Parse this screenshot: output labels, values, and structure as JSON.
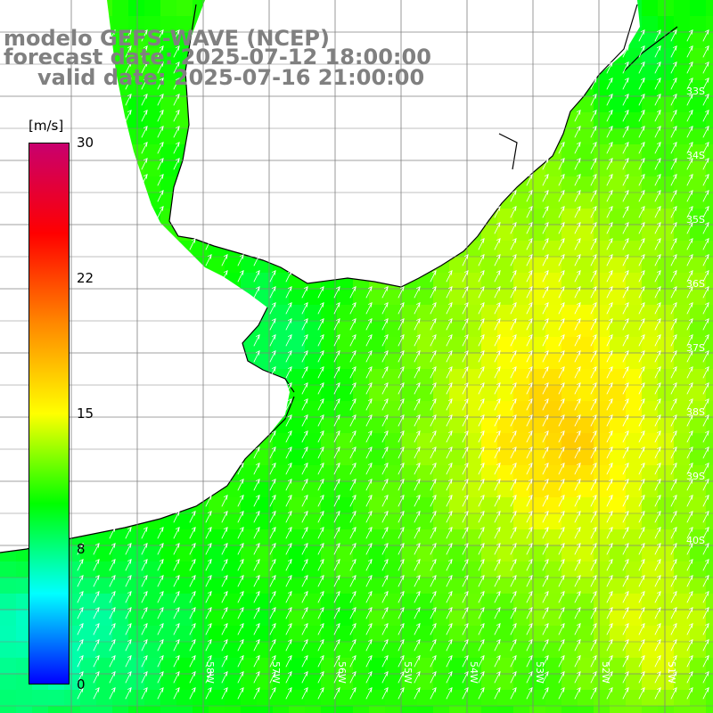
{
  "title": {
    "model": "modelo GEFS-WAVE (NCEP)",
    "forecast": "forecast date: 2025-07-12 18:00:00",
    "valid": "valid date: 2025-07-16 21:00:00"
  },
  "colorbar": {
    "unit": "[m/s]",
    "ticks": [
      {
        "label": "30",
        "value": 30
      },
      {
        "label": "22",
        "value": 22
      },
      {
        "label": "15",
        "value": 15
      },
      {
        "label": "8",
        "value": 8
      },
      {
        "label": "0",
        "value": 0
      }
    ],
    "range": [
      0,
      30
    ],
    "stops": [
      "#0000ff",
      "#00ffff",
      "#00ff00",
      "#ffff00",
      "#ff8800",
      "#ff0000",
      "#c8006e"
    ]
  },
  "map": {
    "lat_labels": [
      "33S",
      "34S",
      "35S",
      "36S",
      "37S",
      "38S",
      "39S",
      "40S"
    ],
    "lon_labels": [
      "58W",
      "57W",
      "56W",
      "55W",
      "54W",
      "53W",
      "52W",
      "51W"
    ],
    "land_color": "#ffffff",
    "grid_color": "#808080",
    "arrow_color": "#ffffff",
    "coastline_color": "#000000",
    "arrow_direction": "north-east"
  }
}
